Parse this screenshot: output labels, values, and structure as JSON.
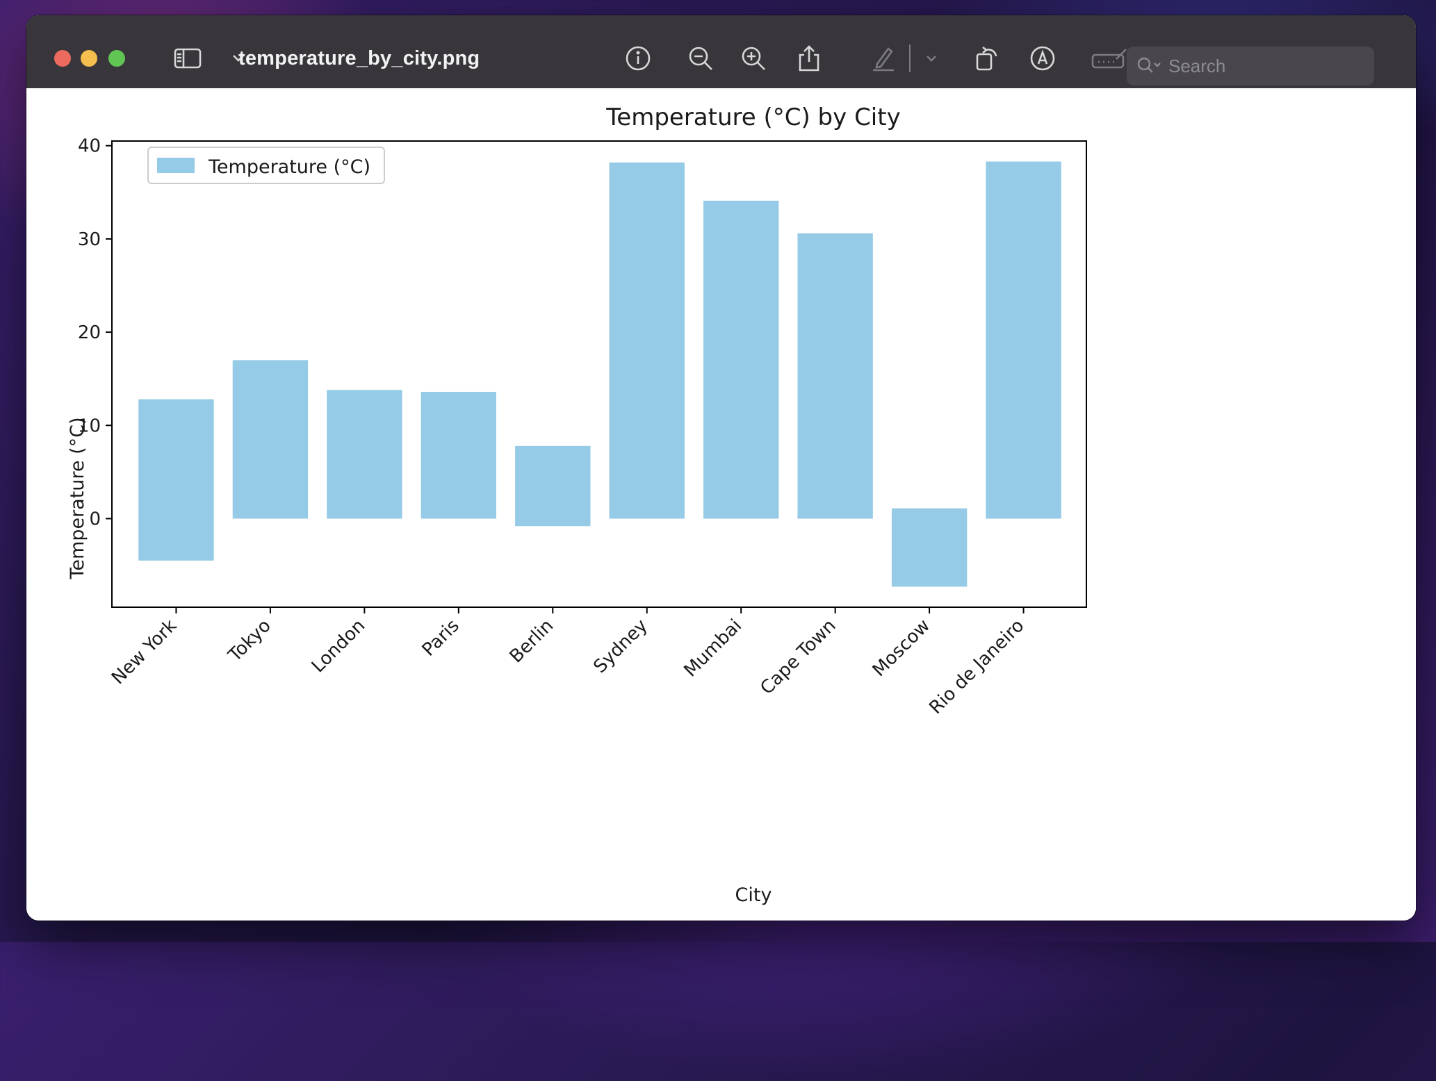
{
  "window": {
    "title": "temperature_by_city.png",
    "search_placeholder": "Search"
  },
  "toolbar": {
    "icons": [
      "sidebar-toggle-icon",
      "chevron-down-icon",
      "info-icon",
      "zoom-out-icon",
      "zoom-in-icon",
      "share-icon",
      "highlight-pen-icon",
      "chevron-down-icon",
      "rotate-icon",
      "markup-icon",
      "signature-icon",
      "search-icon"
    ]
  },
  "colors": {
    "bar": "#95cbe6",
    "close": "#ed6a5e",
    "minimize": "#f4bf4f",
    "maximize": "#61c554"
  },
  "chart_data": {
    "type": "bar",
    "title": "Temperature (°C) by City",
    "xlabel": "City",
    "ylabel": "Temperature (°C)",
    "categories": [
      "New York",
      "Tokyo",
      "London",
      "Paris",
      "Berlin",
      "Sydney",
      "Mumbai",
      "Cape Town",
      "Moscow",
      "Rio de Janeiro"
    ],
    "series": [
      {
        "name": "Temperature (°C)",
        "values": [
          {
            "low": -4.5,
            "high": 12.8
          },
          {
            "low": 0,
            "high": 17.0
          },
          {
            "low": 0,
            "high": 13.8
          },
          {
            "low": 0,
            "high": 13.6
          },
          {
            "low": -0.8,
            "high": 7.8
          },
          {
            "low": 0,
            "high": 38.2
          },
          {
            "low": 0,
            "high": 34.1
          },
          {
            "low": 0,
            "high": 30.6
          },
          {
            "low": -7.3,
            "high": 1.1
          },
          {
            "low": 0,
            "high": 38.3
          }
        ]
      }
    ],
    "yticks": [
      "0",
      "10",
      "20",
      "30",
      "40"
    ],
    "ylim": [
      -9.5,
      40.5
    ],
    "legend_position": "top-left",
    "grid": false
  }
}
